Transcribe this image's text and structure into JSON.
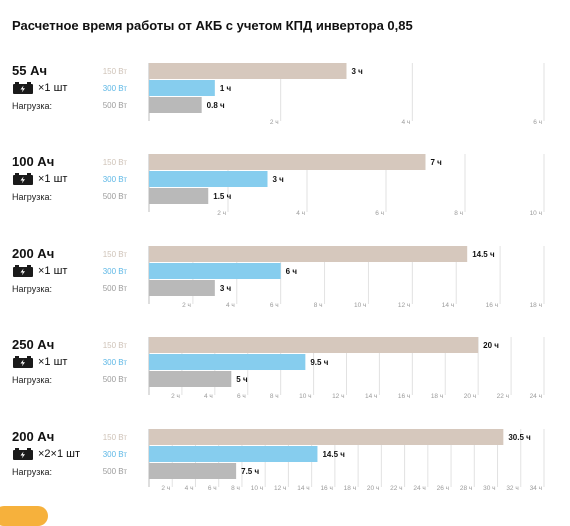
{
  "title": "Расчетное время работы от АКБ с учетом КПД инвертора 0,85",
  "load_label": "Нагрузка:",
  "colors": {
    "w150": "#d6c8bd",
    "w300": "#86cdee",
    "w500": "#b9b9b9",
    "axis": "#bdbdbd",
    "accent": "#f6b13c"
  },
  "chart_data": [
    {
      "type": "bar",
      "capacity": "55 Ач",
      "quantity": "×1 шт",
      "icon": "battery-icon",
      "categories": [
        "150 Вт",
        "300 Вт",
        "500 Вт"
      ],
      "values": [
        3,
        1,
        0.8
      ],
      "value_labels": [
        "3 ч",
        "1 ч",
        "0.8 ч"
      ],
      "xlim": [
        0,
        6
      ],
      "ticks": [
        "2 ч",
        "4 ч",
        "6 ч"
      ],
      "tick_values": [
        2,
        4,
        6
      ]
    },
    {
      "type": "bar",
      "capacity": "100 Ач",
      "quantity": "×1 шт",
      "icon": "battery-icon",
      "categories": [
        "150 Вт",
        "300 Вт",
        "500 Вт"
      ],
      "values": [
        7,
        3,
        1.5
      ],
      "value_labels": [
        "7 ч",
        "3 ч",
        "1.5 ч"
      ],
      "xlim": [
        0,
        10
      ],
      "ticks": [
        "2 ч",
        "4 ч",
        "6 ч",
        "8 ч",
        "10 ч"
      ],
      "tick_values": [
        2,
        4,
        6,
        8,
        10
      ]
    },
    {
      "type": "bar",
      "capacity": "200 Ач",
      "quantity": "×1 шт",
      "icon": "battery-icon",
      "categories": [
        "150 Вт",
        "300 Вт",
        "500 Вт"
      ],
      "values": [
        14.5,
        6,
        3
      ],
      "value_labels": [
        "14.5 ч",
        "6 ч",
        "3 ч"
      ],
      "xlim": [
        0,
        18
      ],
      "ticks": [
        "2 ч",
        "4 ч",
        "6 ч",
        "8 ч",
        "10 ч",
        "12 ч",
        "14 ч",
        "16 ч",
        "18 ч"
      ],
      "tick_values": [
        2,
        4,
        6,
        8,
        10,
        12,
        14,
        16,
        18
      ]
    },
    {
      "type": "bar",
      "capacity": "250 Ач",
      "quantity": "×1 шт",
      "icon": "battery-icon",
      "categories": [
        "150 Вт",
        "300 Вт",
        "500 Вт"
      ],
      "values": [
        20,
        9.5,
        5
      ],
      "value_labels": [
        "20 ч",
        "9.5 ч",
        "5 ч"
      ],
      "xlim": [
        0,
        24
      ],
      "ticks": [
        "2 ч",
        "4 ч",
        "6 ч",
        "8 ч",
        "10 ч",
        "12 ч",
        "14 ч",
        "16 ч",
        "18 ч",
        "20 ч",
        "22 ч",
        "24 ч"
      ],
      "tick_values": [
        2,
        4,
        6,
        8,
        10,
        12,
        14,
        16,
        18,
        20,
        22,
        24
      ]
    },
    {
      "type": "bar",
      "capacity": "200 Ач",
      "quantity": "×2×1 шт",
      "icon": "battery-icon",
      "categories": [
        "150 Вт",
        "300 Вт",
        "500 Вт"
      ],
      "values": [
        30.5,
        14.5,
        7.5
      ],
      "value_labels": [
        "30.5 ч",
        "14.5 ч",
        "7.5 ч"
      ],
      "xlim": [
        0,
        34
      ],
      "ticks": [
        "2 ч",
        "4 ч",
        "6 ч",
        "8 ч",
        "10 ч",
        "12 ч",
        "14 ч",
        "16 ч",
        "18 ч",
        "20 ч",
        "22 ч",
        "24 ч",
        "26 ч",
        "28 ч",
        "30 ч",
        "32 ч",
        "34 ч"
      ],
      "tick_values": [
        2,
        4,
        6,
        8,
        10,
        12,
        14,
        16,
        18,
        20,
        22,
        24,
        26,
        28,
        30,
        32,
        34
      ]
    }
  ]
}
